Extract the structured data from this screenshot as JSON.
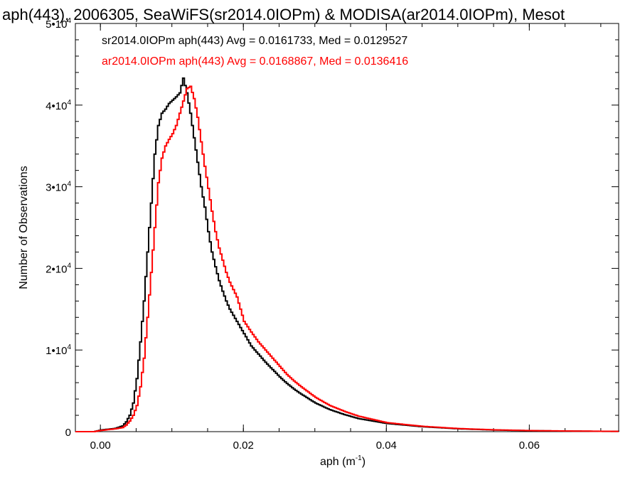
{
  "chart_data": {
    "type": "line",
    "title": "aph(443), 2006305, SeaWiFS(sr2014.0IOPm) & MODISA(ar2014.0IOPm), Mesot",
    "xlabel": "aph (m",
    "xlabel_sup": "-1",
    "xlabel_close": ")",
    "ylabel": "Number of Observations",
    "xlim": [
      -0.0035,
      0.0725
    ],
    "ylim": [
      0,
      50000
    ],
    "grid": false,
    "legend_placement": "top-left",
    "x_ticks": [
      {
        "value": 0.0,
        "label": "0.00"
      },
      {
        "value": 0.02,
        "label": "0.02"
      },
      {
        "value": 0.04,
        "label": "0.04"
      },
      {
        "value": 0.06,
        "label": "0.06"
      }
    ],
    "y_ticks": [
      {
        "value": 0,
        "base": "0",
        "exp": ""
      },
      {
        "value": 10000,
        "base": "1•10",
        "exp": "4"
      },
      {
        "value": 20000,
        "base": "2•10",
        "exp": "4"
      },
      {
        "value": 30000,
        "base": "3•10",
        "exp": "4"
      },
      {
        "value": 40000,
        "base": "4•10",
        "exp": "4"
      },
      {
        "value": 50000,
        "base": "5•10",
        "exp": "4"
      }
    ],
    "series": [
      {
        "name": "sr2014.0IOPm",
        "legend_text": "sr2014.0IOPm aph(443) Avg = 0.0161733, Med = 0.0129527",
        "color": "#000000",
        "points": [
          [
            -0.0035,
            0
          ],
          [
            -0.001,
            0
          ],
          [
            0.0,
            200
          ],
          [
            0.001,
            300
          ],
          [
            0.002,
            400
          ],
          [
            0.003,
            700
          ],
          [
            0.0035,
            1200
          ],
          [
            0.004,
            2000
          ],
          [
            0.0045,
            3500
          ],
          [
            0.005,
            6500
          ],
          [
            0.0055,
            11000
          ],
          [
            0.006,
            16000
          ],
          [
            0.0065,
            22000
          ],
          [
            0.007,
            28000
          ],
          [
            0.0075,
            34000
          ],
          [
            0.008,
            37500
          ],
          [
            0.0085,
            39000
          ],
          [
            0.009,
            39500
          ],
          [
            0.0095,
            40200
          ],
          [
            0.01,
            40600
          ],
          [
            0.0105,
            41000
          ],
          [
            0.011,
            41500
          ],
          [
            0.0115,
            43300
          ],
          [
            0.012,
            41500
          ],
          [
            0.0125,
            39000
          ],
          [
            0.013,
            36000
          ],
          [
            0.0135,
            33000
          ],
          [
            0.014,
            30000
          ],
          [
            0.0145,
            27500
          ],
          [
            0.015,
            24500
          ],
          [
            0.0155,
            22000
          ],
          [
            0.016,
            20200
          ],
          [
            0.0165,
            18500
          ],
          [
            0.017,
            17200
          ],
          [
            0.0175,
            16000
          ],
          [
            0.018,
            15000
          ],
          [
            0.019,
            13500
          ],
          [
            0.02,
            12000
          ],
          [
            0.021,
            10500
          ],
          [
            0.022,
            9500
          ],
          [
            0.023,
            8500
          ],
          [
            0.024,
            7600
          ],
          [
            0.025,
            6700
          ],
          [
            0.026,
            5900
          ],
          [
            0.027,
            5200
          ],
          [
            0.028,
            4600
          ],
          [
            0.03,
            3500
          ],
          [
            0.032,
            2700
          ],
          [
            0.034,
            2100
          ],
          [
            0.036,
            1600
          ],
          [
            0.038,
            1300
          ],
          [
            0.04,
            1000
          ],
          [
            0.045,
            600
          ],
          [
            0.05,
            350
          ],
          [
            0.055,
            200
          ],
          [
            0.06,
            120
          ],
          [
            0.065,
            70
          ],
          [
            0.07,
            40
          ],
          [
            0.0725,
            30
          ]
        ]
      },
      {
        "name": "ar2014.0IOPm",
        "legend_text": "ar2014.0IOPm aph(443) Avg = 0.0168867, Med = 0.0136416",
        "color": "#ff0000",
        "points": [
          [
            -0.0035,
            0
          ],
          [
            -0.001,
            0
          ],
          [
            0.0,
            150
          ],
          [
            0.001,
            250
          ],
          [
            0.002,
            350
          ],
          [
            0.003,
            500
          ],
          [
            0.0035,
            800
          ],
          [
            0.004,
            1300
          ],
          [
            0.0045,
            2000
          ],
          [
            0.005,
            3200
          ],
          [
            0.0055,
            5500
          ],
          [
            0.006,
            9000
          ],
          [
            0.0065,
            14000
          ],
          [
            0.007,
            19500
          ],
          [
            0.0075,
            25000
          ],
          [
            0.008,
            30500
          ],
          [
            0.0085,
            33500
          ],
          [
            0.009,
            35000
          ],
          [
            0.0095,
            35800
          ],
          [
            0.01,
            36500
          ],
          [
            0.0105,
            37500
          ],
          [
            0.011,
            39000
          ],
          [
            0.0115,
            40500
          ],
          [
            0.012,
            42000
          ],
          [
            0.0125,
            42300
          ],
          [
            0.013,
            40800
          ],
          [
            0.0135,
            38500
          ],
          [
            0.014,
            35500
          ],
          [
            0.0145,
            32500
          ],
          [
            0.015,
            29800
          ],
          [
            0.0155,
            27000
          ],
          [
            0.016,
            24500
          ],
          [
            0.0165,
            22500
          ],
          [
            0.017,
            21000
          ],
          [
            0.0175,
            19500
          ],
          [
            0.018,
            18300
          ],
          [
            0.019,
            16500
          ],
          [
            0.02,
            13500
          ],
          [
            0.021,
            12200
          ],
          [
            0.022,
            11000
          ],
          [
            0.023,
            10000
          ],
          [
            0.024,
            9000
          ],
          [
            0.025,
            8000
          ],
          [
            0.026,
            7000
          ],
          [
            0.027,
            6200
          ],
          [
            0.028,
            5500
          ],
          [
            0.03,
            4200
          ],
          [
            0.032,
            3200
          ],
          [
            0.034,
            2500
          ],
          [
            0.036,
            1900
          ],
          [
            0.038,
            1500
          ],
          [
            0.04,
            1100
          ],
          [
            0.045,
            650
          ],
          [
            0.05,
            380
          ],
          [
            0.055,
            220
          ],
          [
            0.06,
            130
          ],
          [
            0.065,
            80
          ],
          [
            0.07,
            45
          ],
          [
            0.0725,
            35
          ]
        ]
      }
    ]
  }
}
